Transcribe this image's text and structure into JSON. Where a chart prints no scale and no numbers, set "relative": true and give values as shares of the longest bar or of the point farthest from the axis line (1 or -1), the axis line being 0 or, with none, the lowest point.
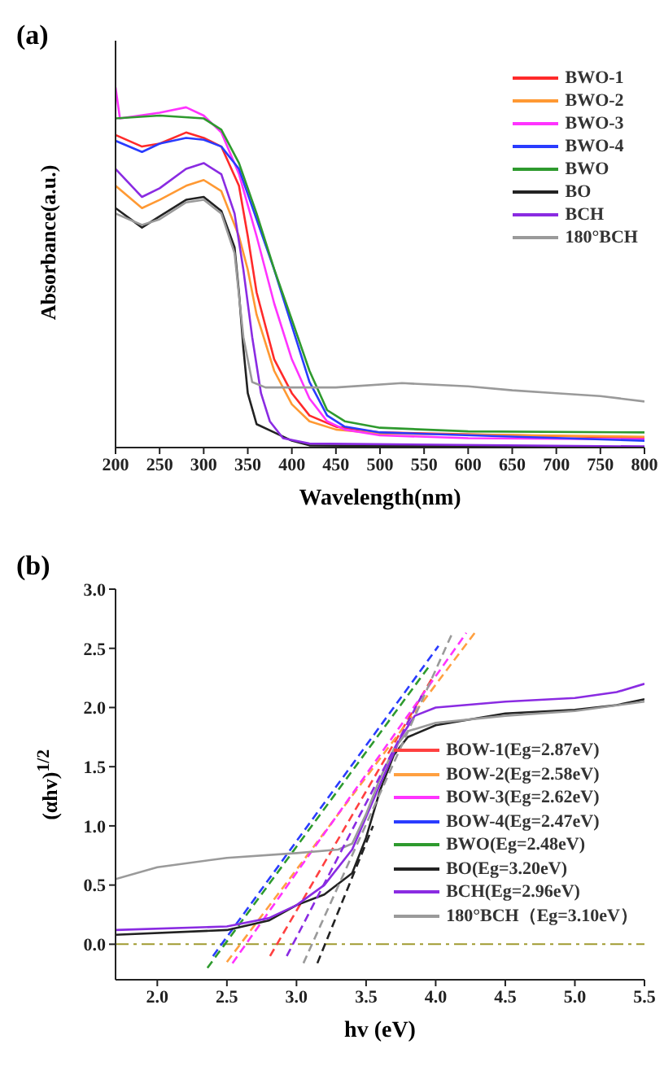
{
  "chart_data": [
    {
      "type": "line",
      "title": "(a)",
      "xlabel": "Wavelength(nm)",
      "ylabel": "Absorbance(a.u.)",
      "relative": true,
      "xlim": [
        200,
        800
      ],
      "xticks": [
        200,
        250,
        300,
        350,
        400,
        450,
        500,
        550,
        600,
        650,
        700,
        750,
        800
      ],
      "legend": "top right",
      "marker": "none",
      "series": [
        {
          "name": "BWO-1",
          "color": "#ff2a2a",
          "x": [
            200,
            230,
            250,
            280,
            300,
            320,
            340,
            350,
            360,
            380,
            400,
            420,
            450,
            500,
            800
          ],
          "values": [
            0.868,
            0.836,
            0.844,
            0.875,
            0.86,
            0.836,
            0.727,
            0.587,
            0.431,
            0.245,
            0.151,
            0.089,
            0.058,
            0.042,
            0.027
          ]
        },
        {
          "name": "BWO-2",
          "color": "#ff9933",
          "x": [
            200,
            230,
            250,
            280,
            300,
            320,
            340,
            350,
            360,
            380,
            400,
            420,
            450,
            500,
            800
          ],
          "values": [
            0.727,
            0.665,
            0.688,
            0.727,
            0.743,
            0.712,
            0.587,
            0.494,
            0.369,
            0.213,
            0.12,
            0.073,
            0.05,
            0.039,
            0.03
          ]
        },
        {
          "name": "BWO-3",
          "color": "#ff33ff",
          "x": [
            200,
            205,
            250,
            280,
            300,
            320,
            340,
            360,
            380,
            400,
            420,
            440,
            460,
            500,
            600,
            800
          ],
          "values": [
            1,
            0.914,
            0.93,
            0.945,
            0.922,
            0.875,
            0.76,
            0.587,
            0.4,
            0.245,
            0.136,
            0.073,
            0.05,
            0.034,
            0.026,
            0.023
          ]
        },
        {
          "name": "BWO-4",
          "color": "#2a3cff",
          "x": [
            200,
            230,
            250,
            280,
            300,
            320,
            340,
            360,
            380,
            400,
            420,
            440,
            460,
            500,
            800
          ],
          "values": [
            0.852,
            0.821,
            0.844,
            0.86,
            0.855,
            0.836,
            0.774,
            0.634,
            0.494,
            0.338,
            0.182,
            0.089,
            0.058,
            0.042,
            0.019
          ]
        },
        {
          "name": "BWO",
          "color": "#2e9a2e",
          "x": [
            200,
            250,
            300,
            320,
            340,
            360,
            380,
            400,
            420,
            440,
            460,
            500,
            600,
            800
          ],
          "values": [
            0.914,
            0.922,
            0.914,
            0.883,
            0.79,
            0.65,
            0.495,
            0.355,
            0.213,
            0.104,
            0.073,
            0.055,
            0.045,
            0.042
          ]
        },
        {
          "name": "BO",
          "color": "#222222",
          "x": [
            200,
            230,
            250,
            280,
            300,
            320,
            335,
            340,
            345,
            350,
            360,
            380,
            400,
            420,
            800
          ],
          "values": [
            0.665,
            0.611,
            0.642,
            0.688,
            0.696,
            0.657,
            0.556,
            0.431,
            0.276,
            0.151,
            0.065,
            0.042,
            0.019,
            0.006,
            0
          ]
        },
        {
          "name": "BCH",
          "color": "#8a2be2",
          "x": [
            200,
            230,
            250,
            280,
            300,
            320,
            335,
            345,
            355,
            365,
            375,
            390,
            420,
            800
          ],
          "values": [
            0.774,
            0.696,
            0.72,
            0.774,
            0.79,
            0.759,
            0.65,
            0.494,
            0.307,
            0.151,
            0.073,
            0.026,
            0.011,
            0.003
          ]
        },
        {
          "name": "180°BCH",
          "color": "#9a9a9a",
          "x": [
            200,
            230,
            250,
            280,
            300,
            320,
            335,
            345,
            355,
            370,
            450,
            525,
            600,
            650,
            700,
            750,
            800
          ],
          "values": [
            0.65,
            0.618,
            0.634,
            0.681,
            0.688,
            0.65,
            0.54,
            0.307,
            0.182,
            0.167,
            0.167,
            0.179,
            0.17,
            0.159,
            0.151,
            0.143,
            0.128
          ]
        }
      ]
    },
    {
      "type": "line",
      "title": "(b)",
      "xlabel": "hv (eV)",
      "ylabel": "(αhv)$^{1/2}$",
      "xlim": [
        1.7,
        5.5
      ],
      "xticks": [
        {
          "value": 2,
          "label": "2.0"
        },
        2.5,
        {
          "value": 3,
          "label": "3.0"
        },
        3.5,
        {
          "value": 4,
          "label": "4.0"
        },
        4.5,
        {
          "value": 5,
          "label": "5.0"
        },
        5.5
      ],
      "ylim": [
        -0.3,
        3
      ],
      "yticks": [
        {
          "value": 0,
          "label": "0.0"
        },
        0.5,
        {
          "value": 1,
          "label": "1.0"
        },
        1.5,
        {
          "value": 2,
          "label": "2.0"
        },
        2.5,
        {
          "value": 3,
          "label": "3.0"
        }
      ],
      "legend": "bottom right",
      "marker": "none",
      "ref_lines": [
        {
          "axis": "y",
          "value": 0,
          "color": "#a09a30",
          "line_style": "dashed"
        }
      ],
      "series": [
        {
          "name": "BOW-1(Eg=2.87eV)",
          "color": "#ff4040",
          "line_style": "dashed",
          "x": [
            2.81,
            3.98
          ],
          "values": [
            -0.1,
            2.26
          ]
        },
        {
          "name": "BOW-2(Eg=2.58eV)",
          "color": "#ffa040",
          "line_style": "dashed",
          "x": [
            2.5,
            4.28
          ],
          "values": [
            -0.15,
            2.63
          ]
        },
        {
          "name": "BOW-3(Eg=2.62eV)",
          "color": "#ff33ff",
          "line_style": "dashed",
          "x": [
            2.54,
            4.22
          ],
          "values": [
            -0.16,
            2.63
          ]
        },
        {
          "name": "BOW-4(Eg=2.47eV)",
          "color": "#2a3cff",
          "line_style": "dashed",
          "x": [
            2.4,
            4.02
          ],
          "values": [
            -0.1,
            2.52
          ]
        },
        {
          "name": "BWO(Eg=2.48eV)",
          "color": "#2e9a2e",
          "line_style": "dashed",
          "x": [
            2.36,
            3.96
          ],
          "values": [
            -0.2,
            2.36
          ]
        },
        {
          "name": "BO(Eg=3.20eV)",
          "color": "#222222",
          "x": [
            1.7,
            2.5,
            2.8,
            3,
            3.2,
            3.4,
            3.5,
            3.6,
            3.7,
            3.8,
            4,
            4.5,
            5,
            5.3,
            5.5
          ],
          "values": [
            0.08,
            0.12,
            0.2,
            0.33,
            0.42,
            0.6,
            0.9,
            1.3,
            1.6,
            1.75,
            1.85,
            1.95,
            1.98,
            2.02,
            2.07
          ]
        },
        {
          "name": "BCH(Eg=2.96eV)",
          "color": "#8a2be2",
          "x": [
            1.7,
            2.5,
            2.8,
            3,
            3.2,
            3.4,
            3.6,
            3.75,
            3.85,
            4,
            4.5,
            5,
            5.3,
            5.5
          ],
          "values": [
            0.12,
            0.15,
            0.22,
            0.33,
            0.5,
            0.8,
            1.35,
            1.75,
            1.93,
            2,
            2.05,
            2.08,
            2.13,
            2.2
          ]
        },
        {
          "name": "180°BCH（Eg=3.10eV）",
          "color": "#9a9a9a",
          "x": [
            1.7,
            2,
            2.5,
            3,
            3.3,
            3.4,
            3.5,
            3.6,
            3.7,
            3.8,
            4,
            4.5,
            5,
            5.5
          ],
          "values": [
            0.55,
            0.65,
            0.73,
            0.77,
            0.8,
            0.85,
            1.1,
            1.4,
            1.65,
            1.8,
            1.87,
            1.93,
            1.97,
            2.05
          ]
        },
        {
          "color": "#222222",
          "line_style": "dashed",
          "x": [
            3.15,
            3.55
          ],
          "values": [
            -0.16,
            1
          ]
        },
        {
          "color": "#8a2be2",
          "line_style": "dashed",
          "x": [
            2.93,
            3.9
          ],
          "values": [
            -0.1,
            2.1
          ]
        },
        {
          "color": "#9a9a9a",
          "line_style": "dashed",
          "x": [
            3.05,
            4.12
          ],
          "values": [
            -0.16,
            2.63
          ]
        }
      ]
    }
  ]
}
